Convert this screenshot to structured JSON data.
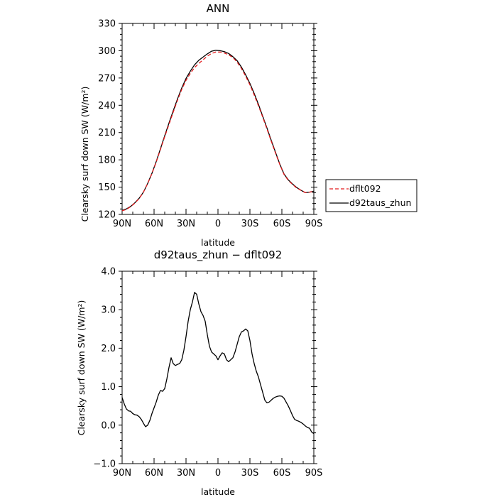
{
  "chart_data": [
    {
      "type": "line",
      "title": "ANN",
      "xlabel": "latitude",
      "ylabel": "Clearsky surf down SW (W/m²)",
      "x_ticks": [
        -90,
        -60,
        -30,
        0,
        30,
        60,
        90
      ],
      "x_tick_labels": [
        "90N",
        "60N",
        "30N",
        "0",
        "30S",
        "60S",
        "90S"
      ],
      "xlim": [
        -90,
        90
      ],
      "ylim": [
        120,
        330
      ],
      "y_ticks": [
        120,
        150,
        180,
        210,
        240,
        270,
        300,
        330
      ],
      "y_tick_labels": [
        "120",
        "150",
        "180",
        "210",
        "240",
        "270",
        "300",
        "330"
      ],
      "legend_position": "right",
      "series": [
        {
          "name": "dflt092",
          "color": "#e31a1c",
          "dash": "dashed",
          "x": [
            -90,
            -86,
            -82,
            -78,
            -74,
            -70,
            -66,
            -62,
            -58,
            -54,
            -50,
            -46,
            -42,
            -38,
            -34,
            -30,
            -26,
            -22,
            -18,
            -14,
            -10,
            -6,
            -2,
            2,
            6,
            10,
            14,
            18,
            22,
            26,
            30,
            34,
            38,
            42,
            46,
            50,
            54,
            58,
            62,
            66,
            70,
            74,
            78,
            82,
            86,
            90
          ],
          "y": [
            124.0,
            125.5,
            128.5,
            132.5,
            137.5,
            144.5,
            154.0,
            165.0,
            177.5,
            191.5,
            205.5,
            219.0,
            232.5,
            245.5,
            257.5,
            267.5,
            275.0,
            281.5,
            286.0,
            290.0,
            294.0,
            297.0,
            298.5,
            298.5,
            297.5,
            295.5,
            292.5,
            287.5,
            280.5,
            272.0,
            262.5,
            251.5,
            239.5,
            227.0,
            214.0,
            200.5,
            187.5,
            175.0,
            164.0,
            157.5,
            153.0,
            149.0,
            146.5,
            144.0,
            144.5,
            145.5
          ]
        },
        {
          "name": "d92taus_zhun",
          "color": "#000000",
          "dash": "solid",
          "x": [
            -90,
            -86,
            -82,
            -78,
            -74,
            -70,
            -66,
            -62,
            -58,
            -54,
            -50,
            -46,
            -42,
            -38,
            -34,
            -30,
            -26,
            -22,
            -18,
            -14,
            -10,
            -6,
            -2,
            2,
            6,
            10,
            14,
            18,
            22,
            26,
            30,
            34,
            38,
            42,
            46,
            50,
            54,
            58,
            62,
            66,
            70,
            74,
            78,
            82,
            86,
            90
          ],
          "y": [
            124.5,
            126.0,
            128.8,
            132.8,
            137.8,
            144.5,
            154.0,
            165.2,
            178.0,
            192.2,
            206.5,
            220.5,
            234.0,
            247.0,
            259.0,
            269.5,
            277.5,
            284.5,
            289.5,
            293.0,
            296.5,
            299.5,
            300.5,
            300.0,
            299.0,
            297.0,
            293.5,
            289.0,
            282.0,
            273.5,
            264.0,
            253.0,
            241.0,
            228.0,
            215.0,
            201.5,
            188.5,
            175.5,
            164.5,
            158.0,
            153.5,
            149.5,
            146.5,
            144.0,
            144.5,
            145.5
          ]
        }
      ]
    },
    {
      "type": "line",
      "title": "d92taus_zhun − dflt092",
      "xlabel": "latitude",
      "ylabel": "Clearsky surf down SW (W/m²)",
      "x_ticks": [
        -90,
        -60,
        -30,
        0,
        30,
        60,
        90
      ],
      "x_tick_labels": [
        "90N",
        "60N",
        "30N",
        "0",
        "30S",
        "60S",
        "90S"
      ],
      "xlim": [
        -90,
        90
      ],
      "ylim": [
        -1,
        4
      ],
      "y_ticks": [
        -1,
        0,
        1,
        2,
        3,
        4
      ],
      "y_tick_labels": [
        "−1.0",
        "0.0",
        "1.0",
        "2.0",
        "3.0",
        "4.0"
      ],
      "series": [
        {
          "name": "",
          "color": "#000000",
          "dash": "solid",
          "x": [
            -90,
            -88,
            -86,
            -84,
            -82,
            -80,
            -78,
            -76,
            -74,
            -72,
            -70,
            -68,
            -66,
            -64,
            -62,
            -60,
            -58,
            -56,
            -54,
            -52,
            -50,
            -48,
            -46,
            -44,
            -42,
            -40,
            -38,
            -36,
            -34,
            -32,
            -30,
            -28,
            -26,
            -24,
            -22,
            -20,
            -18,
            -16,
            -14,
            -12,
            -10,
            -8,
            -6,
            -4,
            -2,
            0,
            2,
            4,
            6,
            8,
            10,
            12,
            14,
            16,
            18,
            20,
            22,
            24,
            26,
            28,
            30,
            32,
            34,
            36,
            38,
            40,
            42,
            44,
            46,
            48,
            50,
            52,
            54,
            56,
            58,
            60,
            62,
            64,
            66,
            68,
            70,
            72,
            74,
            76,
            78,
            80,
            82,
            84,
            86,
            88,
            90
          ],
          "y": [
            0.72,
            0.55,
            0.42,
            0.37,
            0.36,
            0.3,
            0.27,
            0.26,
            0.22,
            0.15,
            0.05,
            -0.04,
            0.0,
            0.12,
            0.3,
            0.45,
            0.6,
            0.78,
            0.9,
            0.88,
            0.95,
            1.2,
            1.5,
            1.75,
            1.6,
            1.55,
            1.58,
            1.6,
            1.7,
            1.95,
            2.3,
            2.7,
            3.0,
            3.2,
            3.45,
            3.4,
            3.15,
            2.95,
            2.85,
            2.7,
            2.35,
            2.05,
            1.9,
            1.85,
            1.8,
            1.7,
            1.8,
            1.88,
            1.85,
            1.7,
            1.65,
            1.7,
            1.75,
            1.9,
            2.1,
            2.3,
            2.42,
            2.45,
            2.5,
            2.45,
            2.2,
            1.85,
            1.6,
            1.4,
            1.25,
            1.05,
            0.85,
            0.65,
            0.58,
            0.6,
            0.65,
            0.7,
            0.73,
            0.75,
            0.76,
            0.75,
            0.7,
            0.6,
            0.5,
            0.38,
            0.25,
            0.15,
            0.12,
            0.1,
            0.07,
            0.03,
            -0.02,
            -0.06,
            -0.08,
            -0.18,
            -0.22
          ]
        }
      ]
    }
  ]
}
